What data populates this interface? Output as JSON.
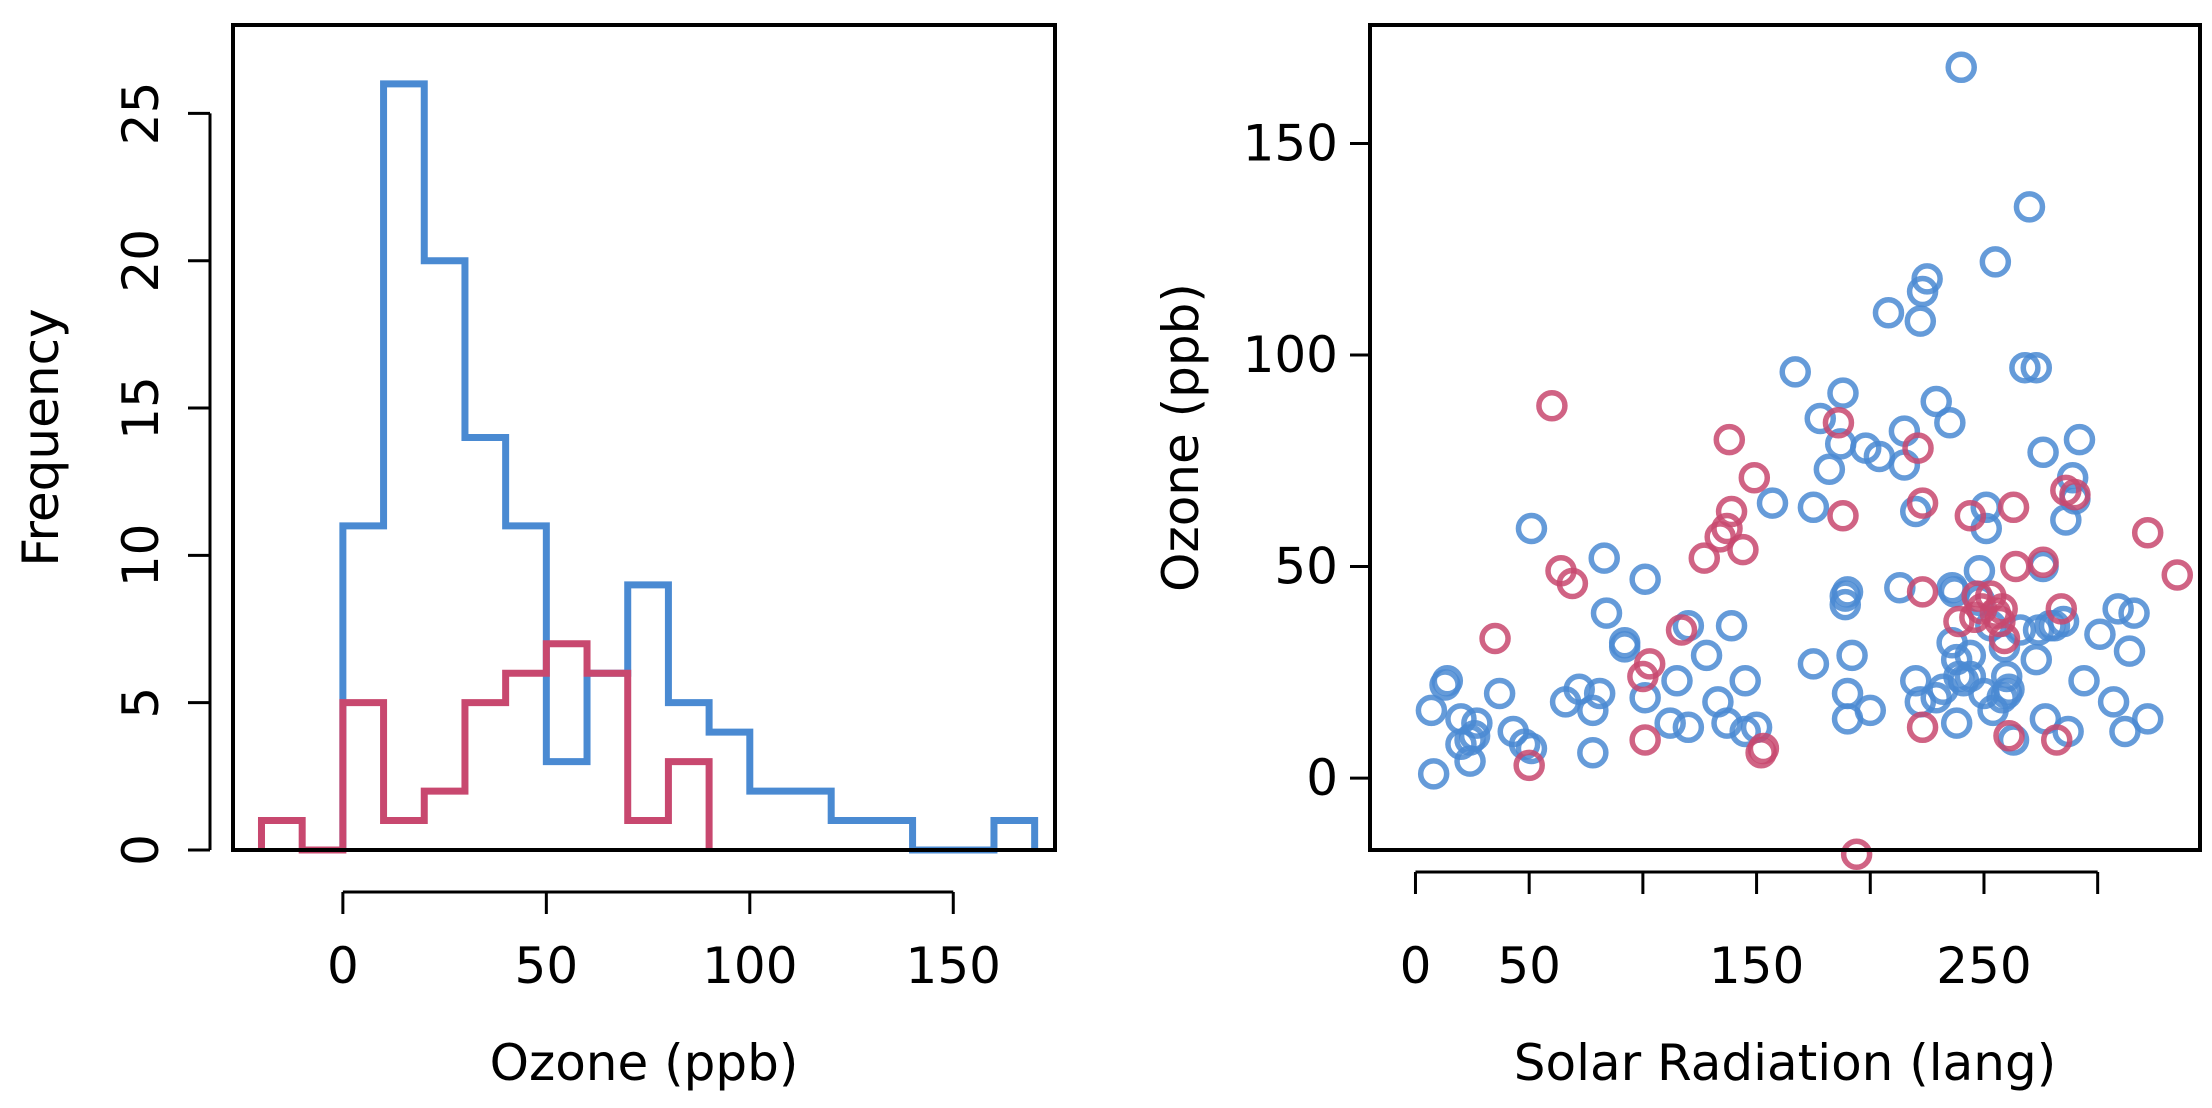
{
  "chart_data": [
    {
      "type": "histogram",
      "xlabel": "Ozone (ppb)",
      "ylabel": "Frequency",
      "xlim": [
        -27,
        175
      ],
      "ylim": [
        0,
        28
      ],
      "x_ticks": [
        0,
        50,
        100,
        150
      ],
      "y_ticks": [
        0,
        5,
        10,
        15,
        20,
        25
      ],
      "box": true,
      "grid": false,
      "bin_width": 10,
      "series": [
        {
          "color": "#4a8ad2",
          "bin_edges": [
            0,
            10,
            20,
            30,
            40,
            50,
            60,
            70,
            80,
            90,
            100,
            110,
            120,
            130,
            140,
            150,
            160,
            170
          ],
          "counts": [
            11,
            26,
            20,
            14,
            11,
            3,
            6,
            9,
            5,
            4,
            2,
            2,
            1,
            1,
            0,
            0,
            1
          ]
        },
        {
          "color": "#c8486f",
          "bin_edges": [
            -20,
            -10,
            0,
            10,
            20,
            30,
            40,
            50,
            60,
            70,
            80,
            90
          ],
          "counts": [
            1,
            0,
            5,
            1,
            2,
            5,
            6,
            7,
            6,
            1,
            3
          ]
        }
      ]
    },
    {
      "type": "scatter",
      "xlabel": "Solar Radiation (lang)",
      "ylabel": "Ozone (ppb)",
      "xlim": [
        -20,
        345
      ],
      "ylim": [
        -17,
        178
      ],
      "x_ticks": [
        0,
        50,
        150,
        250
      ],
      "x_minor_ticks": [
        100,
        200,
        300
      ],
      "y_ticks": [
        0,
        50,
        100,
        150
      ],
      "box": true,
      "grid": false,
      "marker": "open-circle",
      "series": [
        {
          "color": "#4a8ad2",
          "points": [
            [
              8,
              1
            ],
            [
              7,
              16
            ],
            [
              13,
              22
            ],
            [
              14,
              23
            ],
            [
              20,
              8
            ],
            [
              20,
              14
            ],
            [
              24,
              4
            ],
            [
              24,
              9
            ],
            [
              27,
              13
            ],
            [
              26,
              10
            ],
            [
              37,
              20
            ],
            [
              43,
              11
            ],
            [
              48,
              8
            ],
            [
              51,
              7
            ],
            [
              51,
              59
            ],
            [
              66,
              18
            ],
            [
              72,
              21
            ],
            [
              78,
              16
            ],
            [
              78,
              6
            ],
            [
              81,
              20
            ],
            [
              83,
              52
            ],
            [
              84,
              39
            ],
            [
              92,
              32
            ],
            [
              92,
              31
            ],
            [
              101,
              47
            ],
            [
              101,
              19
            ],
            [
              112,
              13
            ],
            [
              115,
              23
            ],
            [
              120,
              12
            ],
            [
              120,
              36
            ],
            [
              128,
              29
            ],
            [
              133,
              18
            ],
            [
              137,
              13
            ],
            [
              139,
              36
            ],
            [
              145,
              11
            ],
            [
              145,
              23
            ],
            [
              150,
              12
            ],
            [
              157,
              65
            ],
            [
              167,
              96
            ],
            [
              175,
              64
            ],
            [
              175,
              27
            ],
            [
              178,
              85
            ],
            [
              182,
              73
            ],
            [
              187,
              79
            ],
            [
              188,
              91
            ],
            [
              189,
              41
            ],
            [
              189,
              43
            ],
            [
              190,
              44
            ],
            [
              190,
              20
            ],
            [
              190,
              14
            ],
            [
              192,
              29
            ],
            [
              198,
              78
            ],
            [
              200,
              16
            ],
            [
              204,
              76
            ],
            [
              208,
              110
            ],
            [
              213,
              45
            ],
            [
              215,
              82
            ],
            [
              215,
              74
            ],
            [
              220,
              23
            ],
            [
              220,
              63
            ],
            [
              222,
              18
            ],
            [
              222,
              108
            ],
            [
              223,
              115
            ],
            [
              225,
              118
            ],
            [
              229,
              19
            ],
            [
              229,
              89
            ],
            [
              232,
              21
            ],
            [
              235,
              84
            ],
            [
              236,
              45
            ],
            [
              236,
              32
            ],
            [
              237,
              44
            ],
            [
              238,
              13
            ],
            [
              238,
              28
            ],
            [
              239,
              24
            ],
            [
              240,
              168
            ],
            [
              241,
              23
            ],
            [
              244,
              24
            ],
            [
              244,
              29
            ],
            [
              248,
              49
            ],
            [
              248,
              42
            ],
            [
              250,
              20
            ],
            [
              251,
              64
            ],
            [
              251,
              59
            ],
            [
              253,
              36
            ],
            [
              254,
              16
            ],
            [
              255,
              122
            ],
            [
              258,
              19
            ],
            [
              259,
              31
            ],
            [
              260,
              24
            ],
            [
              260,
              20
            ],
            [
              261,
              21
            ],
            [
              263,
              9
            ],
            [
              266,
              35
            ],
            [
              268,
              97
            ],
            [
              270,
              135
            ],
            [
              273,
              97
            ],
            [
              273,
              28
            ],
            [
              274,
              35
            ],
            [
              276,
              50
            ],
            [
              276,
              77
            ],
            [
              277,
              14
            ],
            [
              279,
              36
            ],
            [
              281,
              36
            ],
            [
              285,
              37
            ],
            [
              286,
              61
            ],
            [
              287,
              11
            ],
            [
              289,
              71
            ],
            [
              290,
              66
            ],
            [
              292,
              80
            ],
            [
              294,
              23
            ],
            [
              301,
              34
            ],
            [
              307,
              18
            ],
            [
              309,
              40
            ],
            [
              312,
              11
            ],
            [
              314,
              30
            ],
            [
              316,
              39
            ],
            [
              322,
              14
            ]
          ]
        },
        {
          "color": "#c8486f",
          "points": [
            [
              50,
              3
            ],
            [
              60,
              88
            ],
            [
              64,
              49
            ],
            [
              69,
              46
            ],
            [
              35,
              33
            ],
            [
              100,
              24
            ],
            [
              103,
              27
            ],
            [
              101,
              9
            ],
            [
              117,
              35
            ],
            [
              127,
              52
            ],
            [
              134,
              57
            ],
            [
              138,
              80
            ],
            [
              137,
              59
            ],
            [
              139,
              63
            ],
            [
              144,
              54
            ],
            [
              149,
              71
            ],
            [
              152,
              6
            ],
            [
              153,
              7
            ],
            [
              186,
              84
            ],
            [
              188,
              62
            ],
            [
              194,
              -18
            ],
            [
              223,
              44
            ],
            [
              223,
              65
            ],
            [
              221,
              78
            ],
            [
              223,
              12
            ],
            [
              239,
              37
            ],
            [
              244,
              62
            ],
            [
              246,
              38
            ],
            [
              247,
              43
            ],
            [
              249,
              40
            ],
            [
              253,
              43
            ],
            [
              255,
              39
            ],
            [
              257,
              37
            ],
            [
              258,
              40
            ],
            [
              259,
              33
            ],
            [
              261,
              10
            ],
            [
              263,
              64
            ],
            [
              264,
              50
            ],
            [
              276,
              51
            ],
            [
              282,
              9
            ],
            [
              284,
              40
            ],
            [
              286,
              68
            ],
            [
              290,
              67
            ],
            [
              322,
              58
            ],
            [
              335,
              48
            ]
          ]
        }
      ]
    }
  ]
}
